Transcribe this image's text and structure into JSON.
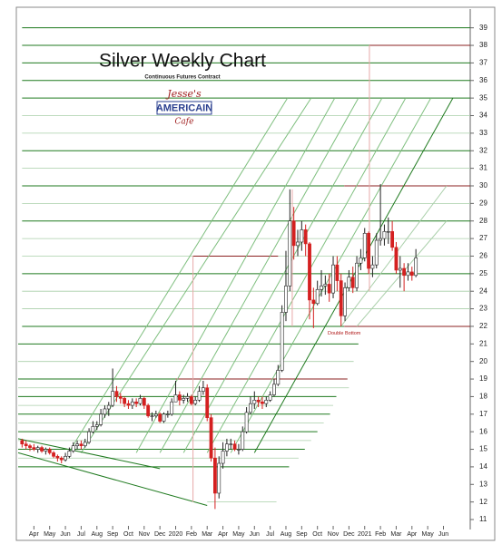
{
  "chart_data": {
    "type": "candlestick",
    "title": "Silver Weekly Chart",
    "subtitle": "Continuous Futures Contract",
    "logo": {
      "top": "Jesse's",
      "middle": "AMERICAIN",
      "bottom": "Cafe"
    },
    "annotations": [
      {
        "text": "Double Bottom",
        "x": 20.7,
        "y": 21.6
      }
    ],
    "xlim": [
      0,
      28.7
    ],
    "ylim": [
      10.5,
      40
    ],
    "xticks": [
      {
        "value": 1,
        "label": "Apr"
      },
      {
        "value": 2,
        "label": "May"
      },
      {
        "value": 3,
        "label": "Jun"
      },
      {
        "value": 4,
        "label": "Jul"
      },
      {
        "value": 5,
        "label": "Aug"
      },
      {
        "value": 6,
        "label": "Sep"
      },
      {
        "value": 7,
        "label": "Oct"
      },
      {
        "value": 8,
        "label": "Nov"
      },
      {
        "value": 9,
        "label": "Dec"
      },
      {
        "value": 10,
        "label": "2020"
      },
      {
        "value": 11,
        "label": "Feb"
      },
      {
        "value": 12,
        "label": "Mar"
      },
      {
        "value": 13,
        "label": "Apr"
      },
      {
        "value": 14,
        "label": "May"
      },
      {
        "value": 15,
        "label": "Jun"
      },
      {
        "value": 16,
        "label": "Jul"
      },
      {
        "value": 17,
        "label": "Aug"
      },
      {
        "value": 18,
        "label": "Sep"
      },
      {
        "value": 19,
        "label": "Oct"
      },
      {
        "value": 20,
        "label": "Nov"
      },
      {
        "value": 21,
        "label": "Dec"
      },
      {
        "value": 22,
        "label": "2021"
      },
      {
        "value": 23,
        "label": "Feb"
      },
      {
        "value": 24,
        "label": "Mar"
      },
      {
        "value": 25,
        "label": "Apr"
      },
      {
        "value": 26,
        "label": "May"
      },
      {
        "value": 27,
        "label": "Jun"
      }
    ],
    "yticks": [
      11,
      12,
      13,
      14,
      15,
      16,
      17,
      18,
      19,
      20,
      21,
      22,
      23,
      24,
      25,
      26,
      27,
      28,
      29,
      30,
      31,
      32,
      33,
      34,
      35,
      36,
      37,
      38,
      39
    ],
    "up_color": "#ffffff",
    "down_color": "#d42020",
    "x": [
      0.25,
      0.5,
      0.75,
      1,
      1.25,
      1.5,
      1.75,
      2,
      2.25,
      2.5,
      2.75,
      3,
      3.25,
      3.5,
      3.75,
      4,
      4.25,
      4.5,
      4.75,
      5,
      5.25,
      5.5,
      5.75,
      6,
      6.25,
      6.5,
      6.75,
      7,
      7.25,
      7.5,
      7.75,
      8,
      8.25,
      8.5,
      8.75,
      9,
      9.25,
      9.5,
      9.75,
      10,
      10.25,
      10.5,
      10.75,
      11,
      11.25,
      11.5,
      11.75,
      12,
      12.25,
      12.5,
      12.75,
      13,
      13.25,
      13.5,
      13.75,
      14,
      14.25,
      14.5,
      14.75,
      15,
      15.25,
      15.5,
      15.75,
      16,
      16.25,
      16.5,
      16.75,
      17,
      17.25,
      17.5,
      17.75,
      18,
      18.25,
      18.5,
      18.75,
      19,
      19.25,
      19.5,
      19.75,
      20,
      20.25,
      20.5,
      20.75,
      21,
      21.25,
      21.5,
      21.75,
      22,
      22.25,
      22.5,
      22.75,
      23,
      23.25,
      23.5,
      23.75,
      24,
      24.25,
      24.5,
      24.75,
      25,
      25.25
    ],
    "open": [
      15.5,
      15.3,
      15.2,
      15.1,
      15.0,
      15.1,
      14.9,
      15.0,
      14.8,
      14.6,
      14.5,
      14.4,
      14.6,
      14.9,
      15.2,
      15.3,
      15.2,
      15.4,
      16.0,
      16.3,
      16.4,
      17.0,
      17.3,
      17.5,
      18.3,
      18.0,
      17.9,
      17.6,
      17.5,
      17.7,
      17.6,
      17.9,
      17.5,
      16.9,
      16.9,
      17.0,
      16.6,
      17.0,
      17.0,
      17.7,
      18.1,
      17.8,
      17.9,
      18.0,
      17.6,
      17.8,
      18.3,
      18.5,
      16.8,
      14.5,
      12.5,
      14.2,
      14.9,
      15.3,
      15.3,
      15.0,
      15.0,
      16.0,
      17.1,
      17.6,
      17.8,
      17.7,
      17.6,
      17.8,
      18.1,
      18.7,
      19.5,
      22.8,
      24.3,
      28.0,
      26.6,
      26.8,
      27.5,
      26.7,
      23.5,
      23.3,
      24.1,
      24.3,
      24.4,
      23.9,
      25.5,
      24.6,
      22.6,
      24.2,
      24.8,
      24.2,
      25.6,
      25.9,
      27.3,
      25.3,
      25.5,
      26.9,
      27.0,
      27.4,
      27.4,
      26.5,
      25.2,
      25.3,
      24.9,
      25.1,
      24.9
    ],
    "high": [
      15.6,
      15.5,
      15.3,
      15.3,
      15.2,
      15.2,
      15.1,
      15.1,
      14.9,
      14.7,
      14.6,
      14.8,
      15.1,
      15.4,
      15.5,
      15.5,
      15.6,
      16.2,
      16.6,
      16.6,
      17.3,
      17.5,
      17.7,
      19.6,
      18.6,
      18.2,
      18.0,
      17.8,
      17.9,
      17.9,
      18.1,
      18.0,
      17.6,
      17.1,
      17.2,
      17.1,
      17.1,
      17.2,
      17.9,
      18.9,
      18.3,
      18.1,
      18.2,
      18.1,
      18.0,
      18.6,
      18.9,
      18.7,
      17.0,
      15.1,
      14.6,
      15.4,
      15.6,
      15.6,
      15.5,
      15.3,
      16.3,
      17.4,
      18.0,
      18.3,
      18.0,
      18.0,
      18.0,
      18.3,
      19.0,
      19.8,
      23.2,
      26.3,
      29.8,
      28.8,
      27.5,
      28.0,
      27.8,
      26.8,
      24.2,
      24.6,
      25.2,
      24.9,
      25.0,
      26.0,
      26.0,
      25.0,
      24.5,
      25.2,
      25.4,
      26.0,
      26.4,
      27.6,
      27.4,
      26.0,
      27.3,
      30.1,
      27.8,
      28.2,
      28.0,
      26.8,
      26.0,
      25.6,
      25.6,
      25.4,
      26.4
    ],
    "low": [
      15.1,
      15.0,
      14.9,
      14.9,
      14.8,
      14.8,
      14.7,
      14.7,
      14.5,
      14.3,
      14.2,
      14.3,
      14.5,
      14.8,
      15.0,
      15.0,
      15.1,
      15.3,
      15.9,
      16.1,
      16.3,
      16.8,
      16.9,
      17.4,
      17.7,
      17.6,
      17.4,
      17.3,
      17.3,
      17.4,
      17.5,
      17.3,
      16.8,
      16.6,
      16.8,
      16.5,
      16.5,
      16.8,
      16.9,
      17.7,
      17.5,
      17.6,
      17.7,
      17.5,
      17.5,
      17.7,
      18.1,
      16.6,
      14.3,
      11.6,
      12.2,
      13.9,
      14.6,
      15.0,
      14.9,
      14.7,
      14.9,
      15.9,
      17.0,
      17.3,
      17.4,
      17.3,
      17.4,
      17.7,
      18.0,
      18.6,
      19.4,
      22.3,
      24.0,
      25.8,
      26.0,
      26.3,
      26.0,
      22.4,
      21.9,
      23.2,
      23.7,
      23.8,
      23.4,
      23.6,
      24.0,
      22.0,
      22.3,
      24.0,
      23.9,
      24.0,
      25.2,
      25.7,
      25.0,
      24.8,
      25.3,
      26.6,
      26.6,
      26.7,
      26.3,
      25.0,
      24.2,
      24.0,
      24.6,
      24.6,
      24.8
    ],
    "close": [
      15.3,
      15.2,
      15.1,
      15.0,
      15.1,
      14.9,
      15.0,
      14.8,
      14.6,
      14.5,
      14.4,
      14.6,
      14.9,
      15.2,
      15.3,
      15.2,
      15.4,
      16.0,
      16.3,
      16.4,
      17.0,
      17.3,
      17.5,
      18.3,
      18.0,
      17.9,
      17.6,
      17.5,
      17.7,
      17.6,
      17.9,
      17.5,
      16.9,
      16.9,
      17.0,
      16.6,
      17.0,
      17.0,
      17.7,
      18.1,
      17.8,
      17.9,
      18.0,
      17.6,
      17.8,
      18.3,
      18.5,
      16.8,
      14.5,
      12.5,
      14.2,
      14.9,
      15.3,
      15.3,
      15.0,
      15.0,
      16.0,
      17.1,
      17.6,
      17.8,
      17.7,
      17.6,
      17.8,
      18.1,
      18.7,
      19.5,
      22.8,
      24.3,
      28.0,
      26.6,
      26.8,
      27.5,
      26.7,
      23.5,
      23.3,
      24.1,
      24.3,
      24.4,
      23.9,
      25.5,
      24.6,
      22.6,
      24.2,
      24.8,
      24.2,
      25.6,
      25.9,
      27.3,
      25.3,
      25.5,
      26.9,
      27.0,
      27.4,
      27.4,
      26.5,
      25.2,
      25.3,
      24.9,
      25.1,
      24.9,
      25.9
    ],
    "levels": [
      {
        "y": 39,
        "x0": 0.25,
        "x1": 28.7,
        "color": "#1f7a1f"
      },
      {
        "y": 38,
        "x0": 0.25,
        "x1": 22.3,
        "color": "#1f7a1f"
      },
      {
        "y": 38,
        "x0": 22.3,
        "x1": 28.7,
        "color": "#8b2020"
      },
      {
        "y": 37,
        "x0": 0.25,
        "x1": 28.7,
        "color": "#1f7a1f"
      },
      {
        "y": 36,
        "x0": 0.25,
        "x1": 28.7,
        "color": "#1f7a1f"
      },
      {
        "y": 35,
        "x0": 0.25,
        "x1": 28.7,
        "color": "#1f7a1f"
      },
      {
        "y": 34,
        "x0": 0.25,
        "x1": 28.7,
        "color": "#a9cfa9"
      },
      {
        "y": 33,
        "x0": 0.25,
        "x1": 28.7,
        "color": "#a9cfa9"
      },
      {
        "y": 32,
        "x0": 0.25,
        "x1": 28.7,
        "color": "#1f7a1f"
      },
      {
        "y": 31,
        "x0": 0.25,
        "x1": 28.7,
        "color": "#a9cfa9"
      },
      {
        "y": 30,
        "x0": 0.25,
        "x1": 20.7,
        "color": "#1f7a1f"
      },
      {
        "y": 30,
        "x0": 20.7,
        "x1": 28.7,
        "color": "#8b2020"
      },
      {
        "y": 29,
        "x0": 0.25,
        "x1": 28.7,
        "color": "#a9cfa9"
      },
      {
        "y": 28,
        "x0": 0.25,
        "x1": 28.7,
        "color": "#1f7a1f"
      },
      {
        "y": 27,
        "x0": 0.25,
        "x1": 28.7,
        "color": "#a9cfa9"
      },
      {
        "y": 26,
        "x0": 0.25,
        "x1": 28.7,
        "color": "#a9cfa9"
      },
      {
        "y": 26,
        "x0": 11.1,
        "x1": 16.5,
        "color": "#8b2020"
      },
      {
        "y": 25,
        "x0": 0.25,
        "x1": 28.7,
        "color": "#1f7a1f"
      },
      {
        "y": 24,
        "x0": 0.25,
        "x1": 28.7,
        "color": "#a9cfa9"
      },
      {
        "y": 23,
        "x0": 0.25,
        "x1": 28.7,
        "color": "#a9cfa9"
      },
      {
        "y": 22,
        "x0": 0.25,
        "x1": 20.7,
        "color": "#1f7a1f"
      },
      {
        "y": 22,
        "x0": 20.7,
        "x1": 28.7,
        "color": "#8b2020"
      },
      {
        "y": 21,
        "x0": 0,
        "x1": 21.6,
        "color": "#1f7a1f"
      },
      {
        "y": 20,
        "x0": 0,
        "x1": 21.3,
        "color": "#a9cfa9"
      },
      {
        "y": 19,
        "x0": 0,
        "x1": 20.9,
        "color": "#1f7a1f"
      },
      {
        "y": 19,
        "x0": 10,
        "x1": 20.9,
        "color": "#8b2020"
      },
      {
        "y": 18.5,
        "x0": 0,
        "x1": 21,
        "color": "#a9cfa9"
      },
      {
        "y": 18,
        "x0": 0,
        "x1": 20.2,
        "color": "#1f7a1f"
      },
      {
        "y": 17.5,
        "x0": 0,
        "x1": 20,
        "color": "#a9cfa9"
      },
      {
        "y": 17,
        "x0": 0,
        "x1": 19.8,
        "color": "#1f7a1f"
      },
      {
        "y": 16.5,
        "x0": 0,
        "x1": 19.4,
        "color": "#a9cfa9"
      },
      {
        "y": 16,
        "x0": 0,
        "x1": 19,
        "color": "#1f7a1f"
      },
      {
        "y": 15.5,
        "x0": 0,
        "x1": 18.6,
        "color": "#a9cfa9"
      },
      {
        "y": 15,
        "x0": 0,
        "x1": 18.2,
        "color": "#1f7a1f"
      },
      {
        "y": 14.5,
        "x0": 0,
        "x1": 17.8,
        "color": "#a9cfa9"
      },
      {
        "y": 14,
        "x0": 0,
        "x1": 17.2,
        "color": "#1f7a1f"
      },
      {
        "y": 12,
        "x0": 12,
        "x1": 16.4,
        "color": "#a9cfa9"
      }
    ],
    "trendlines": [
      {
        "x": [
          15,
          27.6
        ],
        "y": [
          14.8,
          35
        ],
        "color": "#1f7a1f"
      },
      {
        "x": [
          13.5,
          26.2
        ],
        "y": [
          14.8,
          35
        ],
        "color": "#7fbf7f"
      },
      {
        "x": [
          12,
          24.6
        ],
        "y": [
          14.8,
          35
        ],
        "color": "#7fbf7f"
      },
      {
        "x": [
          10.5,
          23.1
        ],
        "y": [
          14.8,
          35
        ],
        "color": "#7fbf7f"
      },
      {
        "x": [
          9,
          21.6
        ],
        "y": [
          14.8,
          35
        ],
        "color": "#7fbf7f"
      },
      {
        "x": [
          7.5,
          20.1
        ],
        "y": [
          14.8,
          35
        ],
        "color": "#7fbf7f"
      },
      {
        "x": [
          4,
          18.6
        ],
        "y": [
          14.8,
          35
        ],
        "color": "#7fbf7f"
      },
      {
        "x": [
          3.2,
          17.1
        ],
        "y": [
          14.8,
          35
        ],
        "color": "#7fbf7f"
      },
      {
        "x": [
          20.5,
          27.2
        ],
        "y": [
          22,
          30
        ],
        "color": "#a9cfa9"
      },
      {
        "x": [
          21.5,
          27.2
        ],
        "y": [
          22,
          28
        ],
        "color": "#a9cfa9"
      },
      {
        "x": [
          0,
          12
        ],
        "y": [
          14.8,
          11.8
        ],
        "color": "#1f7a1f"
      },
      {
        "x": [
          0,
          9
        ],
        "y": [
          15.6,
          13.9
        ],
        "color": "#1f7a1f"
      }
    ],
    "vlines": [
      {
        "x": 11.1,
        "y": [
          12,
          26
        ],
        "color": "#e8a8a8"
      },
      {
        "x": 22.3,
        "y": [
          24,
          38
        ],
        "color": "#e8a8a8"
      },
      {
        "x": 17.4,
        "y": [
          22,
          29.8
        ],
        "color": "#e8a8a8"
      }
    ]
  }
}
